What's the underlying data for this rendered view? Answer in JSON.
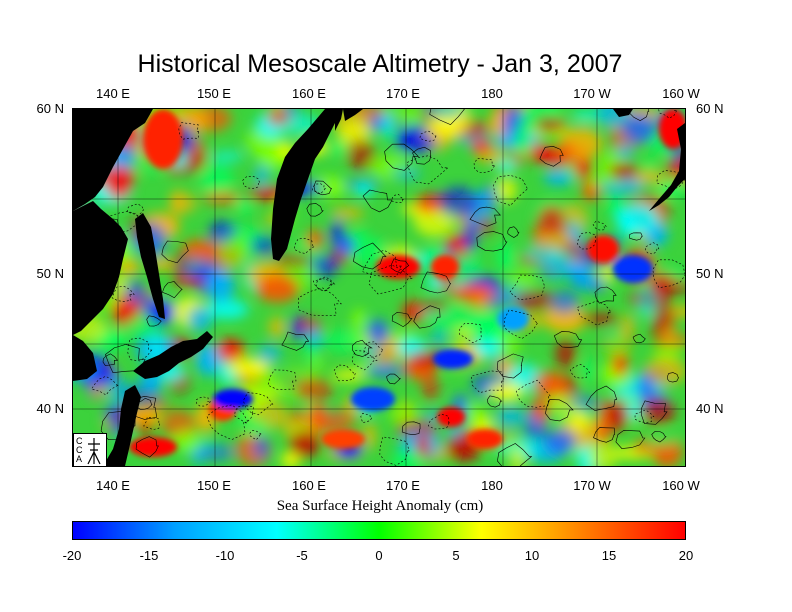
{
  "title": "Historical Mesoscale Altimetry - Jan 3, 2007",
  "lon_ticks": [
    "140 E",
    "150 E",
    "160 E",
    "170 E",
    "180",
    "170 W",
    "160 W"
  ],
  "lat_ticks": [
    "60 N",
    "50 N",
    "40 N"
  ],
  "colorbar": {
    "label": "Sea Surface Height Anomaly (cm)",
    "ticks": [
      "-20",
      "-15",
      "-10",
      "-5",
      "0",
      "5",
      "10",
      "15",
      "20"
    ],
    "range": [
      -20,
      20
    ],
    "colors": [
      "#0000ff",
      "#00a0ff",
      "#00ffff",
      "#00ff00",
      "#ffff00",
      "#ff8000",
      "#ff0000"
    ]
  },
  "map": {
    "lon_range": [
      "135 E",
      "160 W"
    ],
    "lat_range": [
      "36 N",
      "60 N"
    ],
    "land_color": "#000000",
    "logo": "ccar-logo"
  }
}
